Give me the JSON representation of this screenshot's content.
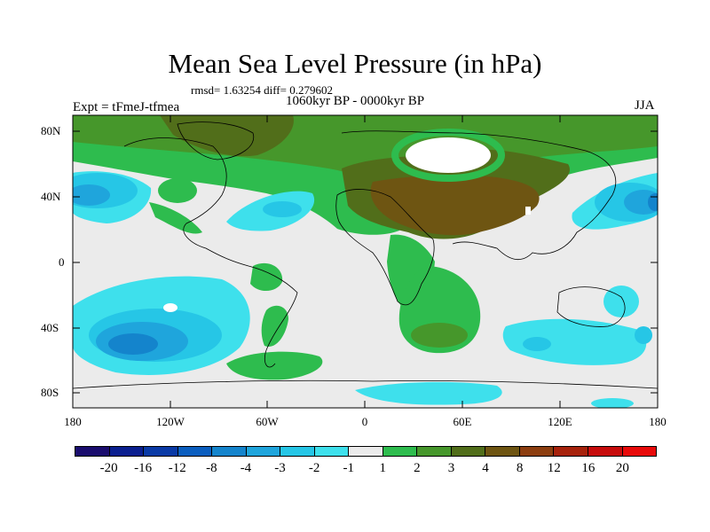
{
  "title": "Mean Sea Level Pressure (in hPa)",
  "stats": "rmsd= 1.63254 diff= 0.279602",
  "period": "1060kyr BP - 0000kyr BP",
  "experiment": "Expt = tFmeJ-tfmea",
  "season": "JJA",
  "lat_labels": [
    "80N",
    "40N",
    "0",
    "40S",
    "80S"
  ],
  "lon_labels": [
    "180",
    "120W",
    "60W",
    "0",
    "60E",
    "120E",
    "180"
  ],
  "colorbar": {
    "labels": [
      "-20",
      "-16",
      "-12",
      "-8",
      "-4",
      "-3",
      "-2",
      "-1",
      "1",
      "2",
      "3",
      "4",
      "8",
      "12",
      "16",
      "20"
    ],
    "colors": [
      "#1a0d6e",
      "#0b1f8f",
      "#0a3aa6",
      "#0b5ebf",
      "#1484cc",
      "#1fa5dc",
      "#26c6e6",
      "#3ee0ec",
      "#ebebeb",
      "#2ebc4e",
      "#46972b",
      "#516e1a",
      "#6e5512",
      "#8c3e10",
      "#a7220c",
      "#c70c0c",
      "#e80a0a"
    ]
  },
  "field_colors": {
    "background": "#ebebeb",
    "neg1": "#3ee0ec",
    "neg2": "#26c6e6",
    "neg3": "#1fa5dc",
    "neg4": "#1484cc",
    "neg8": "#0b5ebf",
    "pos1": "#2ebc4e",
    "pos2": "#46972b",
    "pos3": "#516e1a",
    "pos4": "#6e5512",
    "white": "#ffffff"
  }
}
